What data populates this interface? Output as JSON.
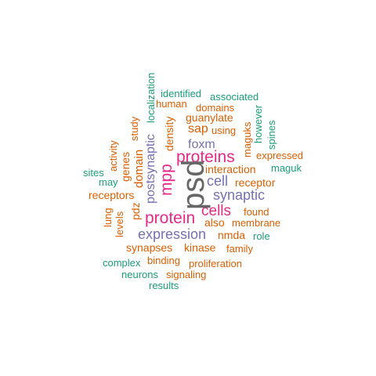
{
  "colors": {
    "teal": "#1b9e77",
    "orange": "#d95f02",
    "purple": "#7570b3",
    "magenta": "#e7298a",
    "gray": "#666666"
  },
  "words": [
    {
      "text": "psd",
      "color": "gray"
    },
    {
      "text": "proteins",
      "color": "magenta"
    },
    {
      "text": "protein",
      "color": "magenta"
    },
    {
      "text": "cells",
      "color": "magenta"
    },
    {
      "text": "mpp",
      "color": "magenta"
    },
    {
      "text": "expression",
      "color": "purple"
    },
    {
      "text": "synaptic",
      "color": "purple"
    },
    {
      "text": "postsynaptic",
      "color": "purple"
    },
    {
      "text": "cell",
      "color": "purple"
    },
    {
      "text": "foxm",
      "color": "purple"
    },
    {
      "text": "sap",
      "color": "orange"
    },
    {
      "text": "domain",
      "color": "orange"
    },
    {
      "text": "interaction",
      "color": "orange"
    },
    {
      "text": "receptor",
      "color": "orange"
    },
    {
      "text": "receptors",
      "color": "orange"
    },
    {
      "text": "synapses",
      "color": "orange"
    },
    {
      "text": "kinase",
      "color": "orange"
    },
    {
      "text": "nmda",
      "color": "orange"
    },
    {
      "text": "membrane",
      "color": "orange"
    },
    {
      "text": "found",
      "color": "orange"
    },
    {
      "text": "also",
      "color": "orange"
    },
    {
      "text": "pdz",
      "color": "orange"
    },
    {
      "text": "density",
      "color": "orange"
    },
    {
      "text": "guanylate",
      "color": "orange"
    },
    {
      "text": "domains",
      "color": "orange"
    },
    {
      "text": "human",
      "color": "orange"
    },
    {
      "text": "using",
      "color": "orange"
    },
    {
      "text": "expressed",
      "color": "orange"
    },
    {
      "text": "genes",
      "color": "orange"
    },
    {
      "text": "activity",
      "color": "orange"
    },
    {
      "text": "study",
      "color": "orange"
    },
    {
      "text": "lung",
      "color": "orange"
    },
    {
      "text": "levels",
      "color": "orange"
    },
    {
      "text": "binding",
      "color": "orange"
    },
    {
      "text": "proliferation",
      "color": "orange"
    },
    {
      "text": "signaling",
      "color": "orange"
    },
    {
      "text": "family",
      "color": "orange"
    },
    {
      "text": "maguks",
      "color": "orange"
    },
    {
      "text": "maguk",
      "color": "teal"
    },
    {
      "text": "role",
      "color": "teal"
    },
    {
      "text": "identified",
      "color": "teal"
    },
    {
      "text": "associated",
      "color": "teal"
    },
    {
      "text": "localization",
      "color": "teal"
    },
    {
      "text": "however",
      "color": "teal"
    },
    {
      "text": "spines",
      "color": "teal"
    },
    {
      "text": "sites",
      "color": "teal"
    },
    {
      "text": "may",
      "color": "teal"
    },
    {
      "text": "complex",
      "color": "teal"
    },
    {
      "text": "neurons",
      "color": "teal"
    },
    {
      "text": "results",
      "color": "teal"
    }
  ]
}
